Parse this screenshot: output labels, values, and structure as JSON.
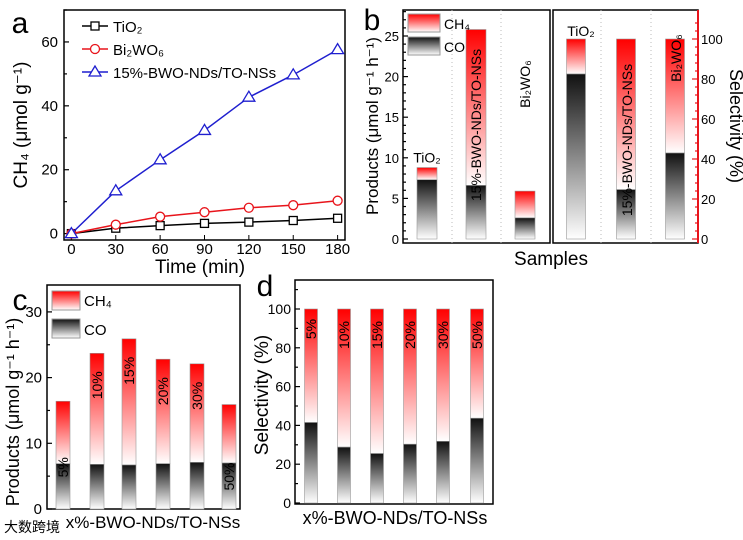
{
  "colors": {
    "ch4": "#ff1a1a",
    "co": "#1a1a1a",
    "tio2": "#000000",
    "bi2wo6": "#e8141b",
    "bwo15": "#1f1fcf",
    "selectivity_axis": "#e8141b"
  },
  "watermark": "大数跨境",
  "chart_data": [
    {
      "panel": "a",
      "type": "line",
      "xlabel": "Time (min)",
      "ylabel": "CH₄ (μmol g⁻¹)",
      "x": [
        0,
        30,
        60,
        90,
        120,
        150,
        180
      ],
      "xticks": [
        "0",
        "30",
        "60",
        "90",
        "120",
        "150",
        "180"
      ],
      "yticks": [
        "0",
        "20",
        "40",
        "60"
      ],
      "xlim": [
        -5,
        185
      ],
      "ylim": [
        -2,
        70
      ],
      "legend": "top-left",
      "series": [
        {
          "name": "TiO₂",
          "marker": "square",
          "values": [
            0,
            1.7,
            2.5,
            3.2,
            3.6,
            4.1,
            4.8
          ]
        },
        {
          "name": "Bi₂WO₆",
          "marker": "circle",
          "values": [
            0,
            2.8,
            5.3,
            6.7,
            8.1,
            8.9,
            10.3
          ]
        },
        {
          "name": "15%-BWO-NDs/TO-NSs",
          "marker": "triangle",
          "values": [
            0,
            13.4,
            23.1,
            32.3,
            42.7,
            49.7,
            57.6
          ]
        }
      ]
    },
    {
      "panel": "b",
      "type": "bar",
      "stacked": true,
      "xlabel": "Samples",
      "ylabel": "Products (μmol g⁻¹ h⁻¹)",
      "ylabel_right": "Selectivity (%)",
      "categories": [
        "TiO₂",
        "15%-BWO-NDs/TO-NSs",
        "Bi₂WO₆"
      ],
      "legend": [
        "CH₄",
        "CO"
      ],
      "yticks": [
        "0",
        "5",
        "10",
        "15",
        "20",
        "25"
      ],
      "yticks_right": [
        "0",
        "20",
        "40",
        "60",
        "80",
        "100"
      ],
      "ylim": [
        -0.5,
        28.6
      ],
      "ylim_right": [
        -2,
        114.5
      ],
      "products_total": [
        8.8,
        25.8,
        5.9
      ],
      "products_co": [
        7.3,
        6.6,
        2.6
      ],
      "selectivity_co": [
        82.5,
        24.7,
        43.0
      ],
      "selectivity_total": [
        100,
        100,
        100
      ]
    },
    {
      "panel": "c",
      "type": "bar",
      "stacked": true,
      "xlabel": "x%-BWO-NDs/TO-NSs",
      "ylabel": "Products (μmol g⁻¹ h⁻¹)",
      "categories": [
        "5%",
        "10%",
        "15%",
        "20%",
        "30%",
        "50%"
      ],
      "legend": [
        "CH₄",
        "CO"
      ],
      "yticks": [
        "0",
        "10",
        "20",
        "30"
      ],
      "ylim": [
        0,
        34
      ],
      "total": [
        16.4,
        23.7,
        25.9,
        22.8,
        22.1,
        15.9
      ],
      "co": [
        6.9,
        6.8,
        6.7,
        6.9,
        7.1,
        7.0
      ]
    },
    {
      "panel": "d",
      "type": "bar",
      "stacked": true,
      "xlabel": "x%-BWO-NDs/TO-NSs",
      "ylabel": "Selectivity (%)",
      "categories": [
        "5%",
        "10%",
        "15%",
        "20%",
        "30%",
        "50%"
      ],
      "yticks": [
        "0",
        "20",
        "40",
        "60",
        "80",
        "100"
      ],
      "ylim": [
        0,
        115
      ],
      "total": [
        100,
        100,
        100,
        100,
        100,
        100
      ],
      "co": [
        41.5,
        28.8,
        25.5,
        30.3,
        31.8,
        43.7
      ]
    }
  ]
}
